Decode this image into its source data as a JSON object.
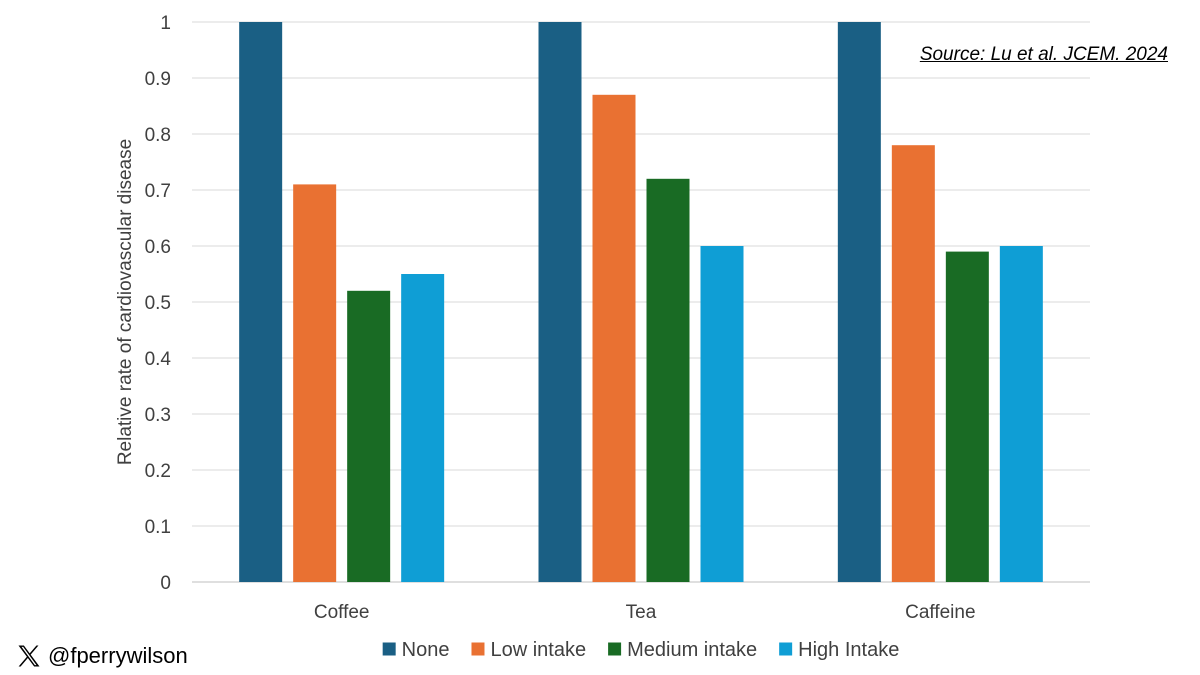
{
  "chart_data": {
    "type": "bar",
    "title": "",
    "xlabel": "",
    "ylabel": "Relative rate of cardiovascular disease",
    "categories": [
      "Coffee",
      "Tea",
      "Caffeine"
    ],
    "series": [
      {
        "name": "None",
        "color": "#1a5f84",
        "values": [
          1,
          1,
          1
        ]
      },
      {
        "name": "Low intake",
        "color": "#e97132",
        "values": [
          0.71,
          0.87,
          0.78
        ]
      },
      {
        "name": "Medium intake",
        "color": "#196b24",
        "values": [
          0.52,
          0.72,
          0.59
        ]
      },
      {
        "name": "High Intake",
        "color": "#0f9ed5",
        "values": [
          0.55,
          0.6,
          0.6
        ]
      }
    ],
    "ylim": [
      0,
      1
    ],
    "yticks": [
      "0",
      "0.1",
      "0.2",
      "0.3",
      "0.4",
      "0.5",
      "0.6",
      "0.7",
      "0.8",
      "0.9",
      "1"
    ],
    "grid": true,
    "legend": "bottom"
  },
  "annotation": {
    "source": "Source: Lu et al. JCEM. 2024"
  },
  "footer": {
    "handle": "@fperrywilson",
    "icon": "x-logo-icon"
  }
}
